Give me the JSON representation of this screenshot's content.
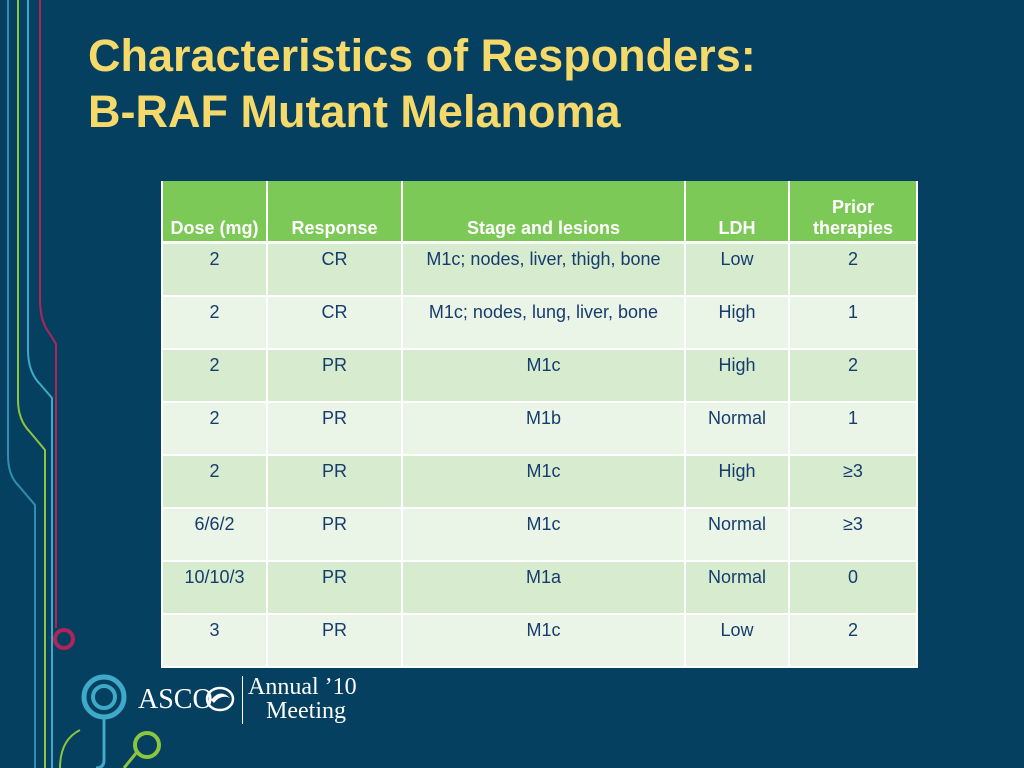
{
  "slide": {
    "title_line1": "Characteristics of Responders:",
    "title_line2": "B-RAF Mutant Melanoma"
  },
  "table": {
    "headers": {
      "dose": "Dose (mg)",
      "response": "Response",
      "stage": "Stage and lesions",
      "ldh": "LDH",
      "prior": "Prior therapies"
    },
    "rows": [
      {
        "dose": "2",
        "response": "CR",
        "stage": "M1c; nodes, liver, thigh, bone",
        "ldh": "Low",
        "prior": "2"
      },
      {
        "dose": "2",
        "response": "CR",
        "stage": "M1c; nodes, lung, liver, bone",
        "ldh": "High",
        "prior": "1"
      },
      {
        "dose": "2",
        "response": "PR",
        "stage": "M1c",
        "ldh": "High",
        "prior": "2"
      },
      {
        "dose": "2",
        "response": "PR",
        "stage": "M1b",
        "ldh": "Normal",
        "prior": "1"
      },
      {
        "dose": "2",
        "response": "PR",
        "stage": "M1c",
        "ldh": "High",
        "prior": "≥3"
      },
      {
        "dose": "6/6/2",
        "response": "PR",
        "stage": "M1c",
        "ldh": "Normal",
        "prior": "≥3"
      },
      {
        "dose": "10/10/3",
        "response": "PR",
        "stage": "M1a",
        "ldh": "Normal",
        "prior": "0"
      },
      {
        "dose": "3",
        "response": "PR",
        "stage": "M1c",
        "ldh": "Low",
        "prior": "2"
      }
    ]
  },
  "logo": {
    "org": "ASCO",
    "event_line1": "Annual ’10",
    "event_line2": "Meeting"
  },
  "colors": {
    "background": "#064060",
    "title": "#f5d96a",
    "header_fill": "#7dc957",
    "row_dark": "#d7ebcf",
    "row_light": "#ebf5e7",
    "cell_text": "#163c6e",
    "deco_green": "#8cc63e",
    "deco_magenta": "#b0245a",
    "deco_cyan": "#3fa9c8"
  }
}
